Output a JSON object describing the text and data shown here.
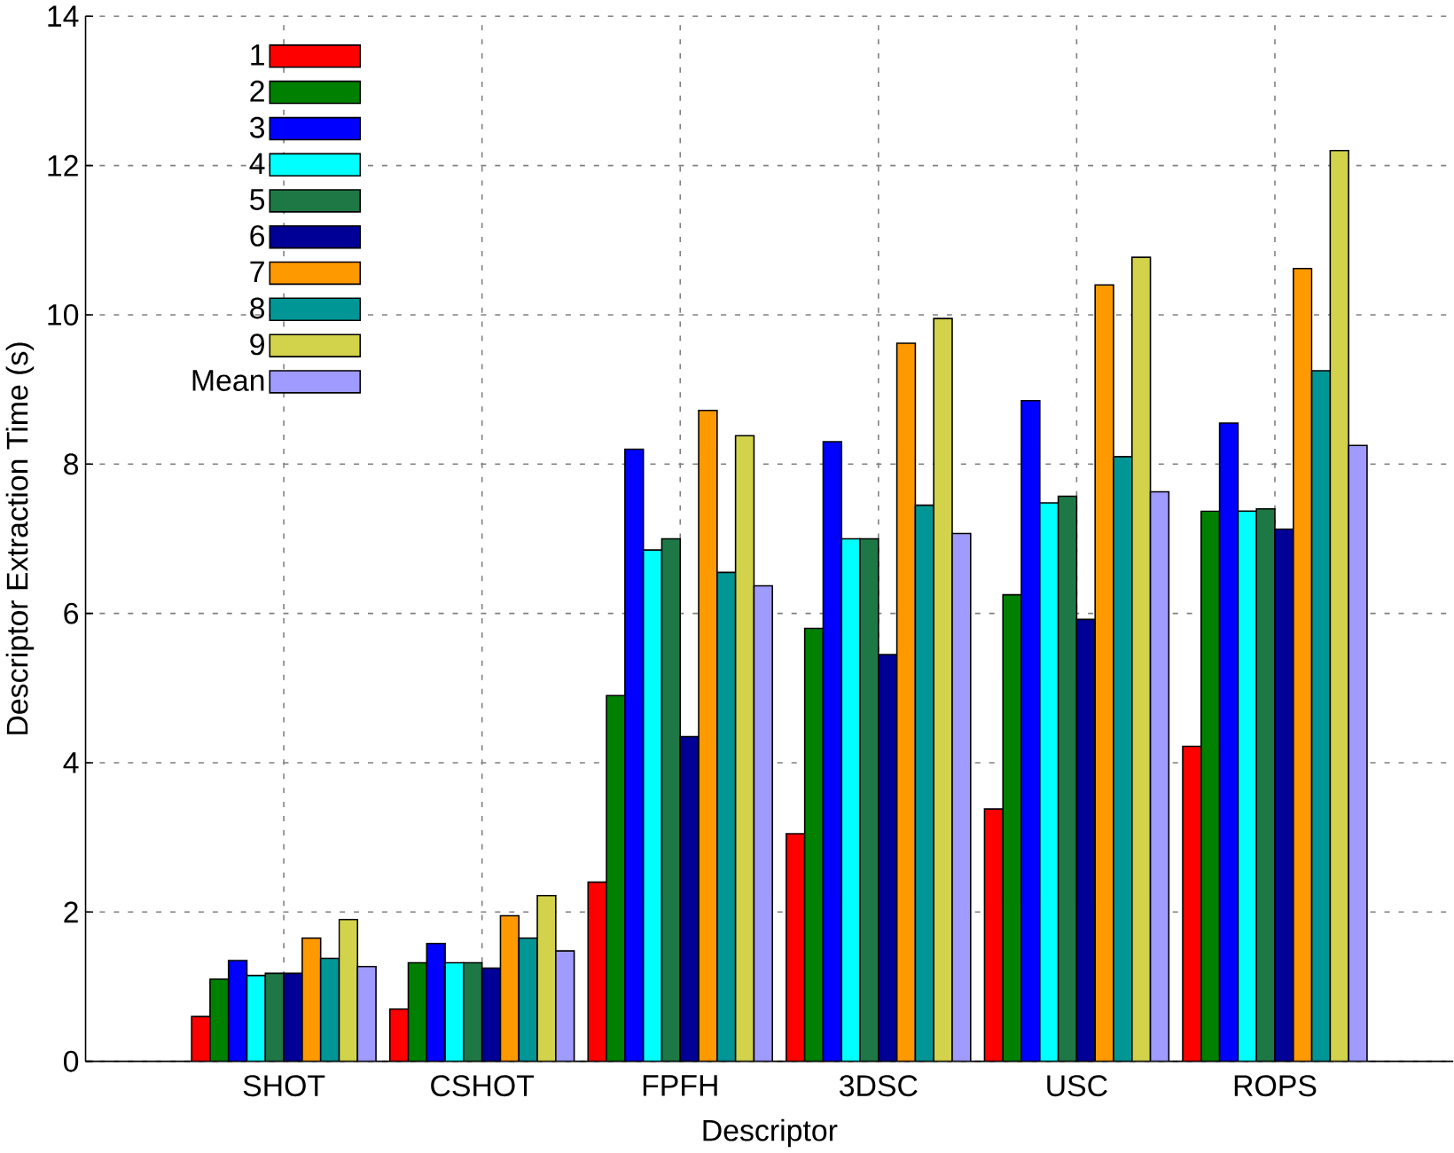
{
  "chart_data": {
    "type": "bar",
    "xlabel": "Descriptor",
    "ylabel": "Descriptor Extraction Time (s)",
    "categories": [
      "SHOT",
      "CSHOT",
      "FPFH",
      "3DSC",
      "USC",
      "ROPS"
    ],
    "ylim": [
      0,
      14
    ],
    "yticks": [
      0,
      2,
      4,
      6,
      8,
      10,
      12,
      14
    ],
    "grid": true,
    "legend": "top left",
    "series": [
      {
        "name": "1",
        "color": "#ff0000",
        "values": [
          0.6,
          0.7,
          2.4,
          3.05,
          3.38,
          4.22
        ]
      },
      {
        "name": "2",
        "color": "#008000",
        "values": [
          1.1,
          1.32,
          4.9,
          5.8,
          6.25,
          7.37
        ]
      },
      {
        "name": "3",
        "color": "#0000ff",
        "values": [
          1.35,
          1.58,
          8.2,
          8.3,
          8.85,
          8.55
        ]
      },
      {
        "name": "4",
        "color": "#00ffff",
        "values": [
          1.15,
          1.32,
          6.85,
          7.0,
          7.48,
          7.37
        ]
      },
      {
        "name": "5",
        "color": "#1e7846",
        "values": [
          1.18,
          1.32,
          7.0,
          7.0,
          7.57,
          7.4
        ]
      },
      {
        "name": "6",
        "color": "#000096",
        "values": [
          1.18,
          1.25,
          4.35,
          5.45,
          5.92,
          7.13
        ]
      },
      {
        "name": "7",
        "color": "#ff9900",
        "values": [
          1.65,
          1.95,
          8.72,
          9.62,
          10.4,
          10.62
        ]
      },
      {
        "name": "8",
        "color": "#009696",
        "values": [
          1.38,
          1.65,
          6.55,
          7.45,
          8.1,
          9.25
        ]
      },
      {
        "name": "9",
        "color": "#d2d24b",
        "values": [
          1.9,
          2.22,
          8.38,
          9.95,
          10.77,
          12.2
        ]
      },
      {
        "name": "Mean",
        "color": "#a09bff",
        "values": [
          1.27,
          1.48,
          6.37,
          7.07,
          7.63,
          8.25
        ]
      }
    ]
  }
}
